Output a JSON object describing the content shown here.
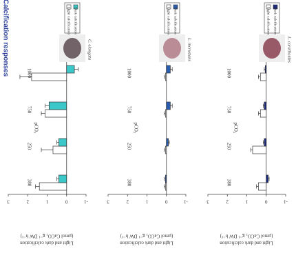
{
  "chart_data": [
    {
      "type": "bar",
      "title": "Calcification responses",
      "species": "C. elongata",
      "xlabel": "pCO₂",
      "ylabel": "Light and dark calcification",
      "ylabel_unit": "(µmol CaCO₃ g⁻¹ DW h⁻¹)",
      "categories": [
        "380",
        "250",
        "750",
        "1000"
      ],
      "series": [
        {
          "name": "Light calcification",
          "color": "#ffffff",
          "values": [
            1.4,
            0.7,
            1.1,
            1.8
          ],
          "errors": [
            0.2,
            0.6,
            0.2,
            0.6
          ]
        },
        {
          "name": "Dark calcification",
          "color": "#3cc8c8",
          "values": [
            0.4,
            0.4,
            0.9,
            -0.4
          ],
          "errors": [
            0.1,
            0.1,
            0.2,
            0.2
          ]
        }
      ],
      "ylim": [
        -1,
        3
      ],
      "yticks": [
        -1,
        0,
        1,
        2,
        3
      ]
    },
    {
      "type": "bar",
      "species": "L. incrustans",
      "xlabel": "pCO₂",
      "ylabel": "Light and dark calcification",
      "ylabel_unit": "(µmol CaCO₃ g⁻¹ DW h⁻¹)",
      "categories": [
        "380",
        "250",
        "750",
        "1000"
      ],
      "series": [
        {
          "name": "Light calcification",
          "color": "#ffffff",
          "values": [
            0.05,
            0.05,
            0.05,
            0.05
          ],
          "errors": [
            0.05,
            0.05,
            0.05,
            0.05
          ]
        },
        {
          "name": "Dark calcification",
          "color": "#2a5db0",
          "values": [
            0.05,
            -0.1,
            -0.2,
            -0.2
          ],
          "errors": [
            0.05,
            0.05,
            0.1,
            0.1
          ]
        }
      ],
      "ylim": [
        -1,
        3
      ],
      "yticks": [
        -1,
        0,
        1,
        2,
        3
      ]
    },
    {
      "type": "bar",
      "species": "L. corallioides",
      "xlabel": "pCO₂",
      "ylabel": "Light and dark calcification",
      "ylabel_unit": "(µmol CaCO₃ g⁻¹ DW h⁻¹)",
      "categories": [
        "380",
        "250",
        "750",
        "1000"
      ],
      "series": [
        {
          "name": "Light calcification",
          "color": "#ffffff",
          "values": [
            0.4,
            0.7,
            0.3,
            0.3
          ],
          "errors": [
            0.1,
            0.1,
            0.1,
            0.1
          ]
        },
        {
          "name": "Dark calcification",
          "color": "#1a2a80",
          "values": [
            -0.1,
            0.1,
            0.1,
            0.05
          ],
          "errors": [
            0.05,
            0.05,
            0.05,
            0.05
          ]
        }
      ],
      "ylim": [
        -1,
        3
      ],
      "yticks": [
        -1,
        0,
        1,
        2,
        3
      ]
    }
  ]
}
